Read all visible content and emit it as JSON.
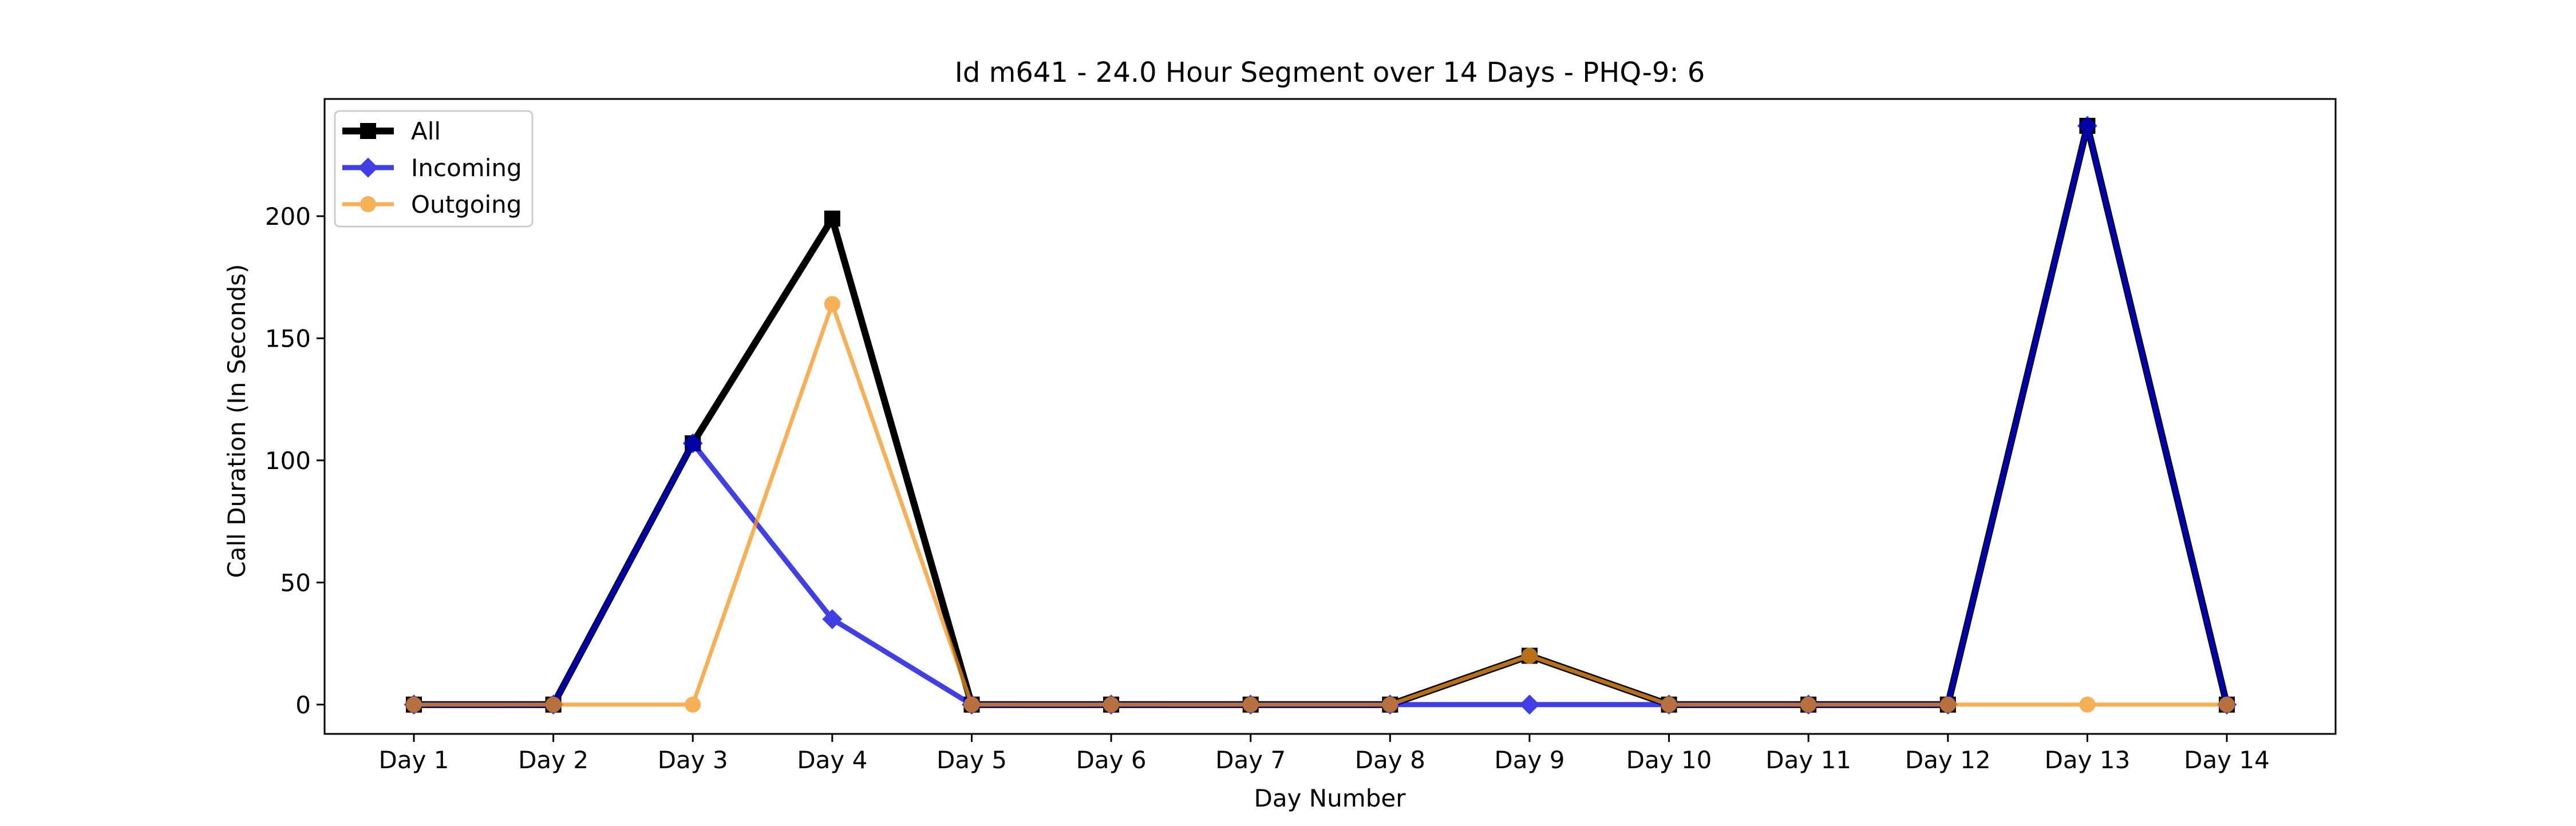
{
  "chart_data": {
    "type": "line",
    "title": "Id m641 - 24.0 Hour Segment over 14 Days - PHQ-9: 6",
    "xlabel": "Day Number",
    "ylabel": "Call Duration (In Seconds)",
    "categories": [
      "Day 1",
      "Day 2",
      "Day 3",
      "Day 4",
      "Day 5",
      "Day 6",
      "Day 7",
      "Day 8",
      "Day 9",
      "Day 10",
      "Day 11",
      "Day 12",
      "Day 13",
      "Day 14"
    ],
    "ylim": [
      -12,
      248
    ],
    "yticks": [
      0,
      50,
      100,
      150,
      200
    ],
    "grid": false,
    "legend_position": "top-left",
    "series": [
      {
        "name": "All",
        "color": "#000000",
        "marker": "square",
        "values": [
          0,
          0,
          107,
          199,
          0,
          0,
          0,
          0,
          20,
          0,
          0,
          0,
          237,
          0
        ]
      },
      {
        "name": "Incoming",
        "color": "#0000dd",
        "marker": "diamond",
        "values": [
          0,
          0,
          107,
          35,
          0,
          0,
          0,
          0,
          0,
          0,
          0,
          0,
          237,
          0
        ]
      },
      {
        "name": "Outgoing",
        "color": "#f5961e",
        "marker": "circle",
        "values": [
          0,
          0,
          0,
          164,
          0,
          0,
          0,
          0,
          20,
          0,
          0,
          0,
          0,
          0
        ]
      }
    ]
  }
}
